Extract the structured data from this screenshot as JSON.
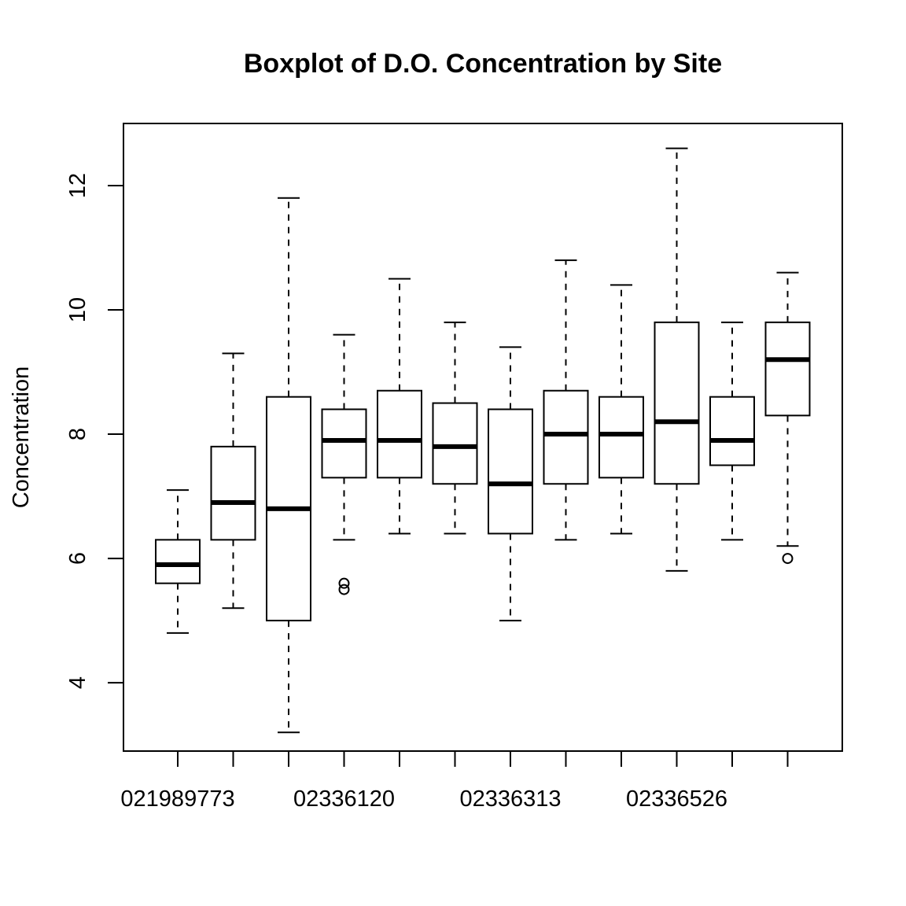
{
  "chart_data": {
    "type": "boxplot",
    "title": "Boxplot of D.O. Concentration by Site",
    "xlabel": "",
    "ylabel": "Concentration",
    "ylim": [
      2.9,
      13.0
    ],
    "yticks": [
      4,
      6,
      8,
      10,
      12
    ],
    "grid": false,
    "xtick_labels": [
      "021989773",
      "",
      "",
      "02336120",
      "",
      "",
      "02336313",
      "",
      "",
      "02336526",
      "",
      ""
    ],
    "boxes": [
      {
        "min": 4.8,
        "q1": 5.6,
        "median": 5.9,
        "q3": 6.3,
        "max": 7.1,
        "outliers": []
      },
      {
        "min": 5.2,
        "q1": 6.3,
        "median": 6.9,
        "q3": 7.8,
        "max": 9.3,
        "outliers": []
      },
      {
        "min": 3.2,
        "q1": 5.0,
        "median": 6.8,
        "q3": 8.6,
        "max": 11.8,
        "outliers": []
      },
      {
        "min": 6.3,
        "q1": 7.3,
        "median": 7.9,
        "q3": 8.4,
        "max": 9.6,
        "outliers": [
          5.5,
          5.6
        ]
      },
      {
        "min": 6.4,
        "q1": 7.3,
        "median": 7.9,
        "q3": 8.7,
        "max": 10.5,
        "outliers": []
      },
      {
        "min": 6.4,
        "q1": 7.2,
        "median": 7.8,
        "q3": 8.5,
        "max": 9.8,
        "outliers": []
      },
      {
        "min": 5.0,
        "q1": 6.4,
        "median": 7.2,
        "q3": 8.4,
        "max": 9.4,
        "outliers": []
      },
      {
        "min": 6.3,
        "q1": 7.2,
        "median": 8.0,
        "q3": 8.7,
        "max": 10.8,
        "outliers": []
      },
      {
        "min": 6.4,
        "q1": 7.3,
        "median": 8.0,
        "q3": 8.6,
        "max": 10.4,
        "outliers": []
      },
      {
        "min": 5.8,
        "q1": 7.2,
        "median": 8.2,
        "q3": 9.8,
        "max": 12.6,
        "outliers": []
      },
      {
        "min": 6.3,
        "q1": 7.5,
        "median": 7.9,
        "q3": 8.6,
        "max": 9.8,
        "outliers": []
      },
      {
        "min": 6.2,
        "q1": 8.3,
        "median": 9.2,
        "q3": 9.8,
        "max": 10.6,
        "outliers": [
          6.0
        ]
      }
    ]
  }
}
